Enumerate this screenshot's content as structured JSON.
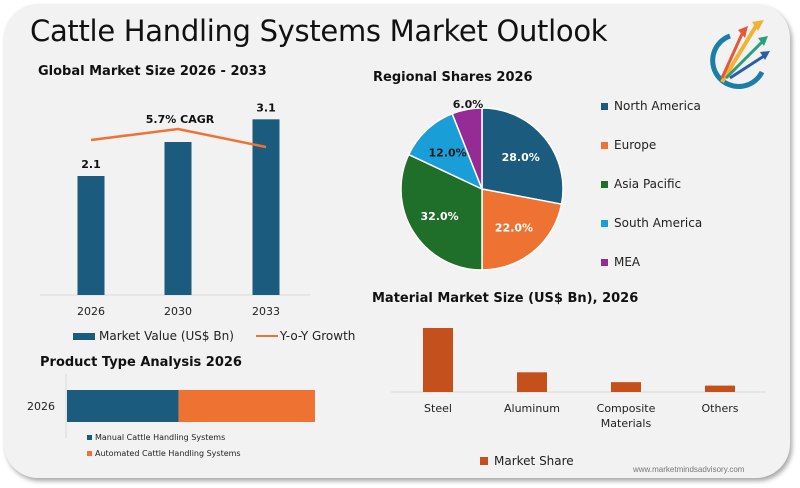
{
  "page": {
    "title": "Cattle Handling Systems Market Outlook",
    "footer_url": "www.marketmindsadvisory.com",
    "logo": "rising-arrows-logo-icon"
  },
  "colors": {
    "navy": "#1a5b7e",
    "orange": "#ee7333",
    "green": "#1f6e2a",
    "sky": "#1a9ed8",
    "purple": "#952b95",
    "rust": "#c4511b"
  },
  "chart_data": [
    {
      "type": "bar",
      "title": "Global Market Size 2026 - 2033",
      "categories": [
        "2026",
        "2030",
        "2033"
      ],
      "series": [
        {
          "name": "Market Value (US$ Bn)",
          "values": [
            2.1,
            2.7,
            3.1
          ],
          "data_labels": [
            "2.1",
            "",
            "3.1"
          ]
        },
        {
          "name": "Y-o-Y Growth",
          "type": "line",
          "values": [
            0.55,
            0.62,
            0.47
          ]
        }
      ],
      "annotation": "5.7% CAGR",
      "xlabel": "",
      "ylabel": "",
      "ylim": [
        0,
        3.5
      ],
      "grid": false,
      "legend": "bottom"
    },
    {
      "type": "pie",
      "title": "Regional Shares 2026",
      "labels": [
        "North America",
        "Europe",
        "Asia Pacific",
        "South America",
        "MEA"
      ],
      "values": [
        28.0,
        22.0,
        32.0,
        12.0,
        6.0
      ],
      "data_labels": [
        "28.0%",
        "22.0%",
        "32.0%",
        "12.0%",
        "6.0%"
      ],
      "legend": "right"
    },
    {
      "type": "bar",
      "orientation": "horizontal-stacked",
      "title": "Product Type Analysis 2026",
      "categories": [
        "2026"
      ],
      "series": [
        {
          "name": "Manual Cattle Handling Systems",
          "values": [
            45
          ]
        },
        {
          "name": "Automated Cattle Handling Systems",
          "values": [
            55
          ]
        }
      ],
      "legend": "bottom"
    },
    {
      "type": "bar",
      "title": "Material Market Size (US$ Bn), 2026",
      "categories": [
        "Steel",
        "Aluminum",
        "Composite Materials",
        "Others"
      ],
      "category_lines": [
        [
          "Steel"
        ],
        [
          "Aluminum"
        ],
        [
          "Composite",
          "Materials"
        ],
        [
          "Others"
        ]
      ],
      "series": [
        {
          "name": "Market Share",
          "values": [
            1.3,
            0.4,
            0.2,
            0.13
          ]
        }
      ],
      "ylim": [
        0,
        1.4
      ],
      "grid": false,
      "legend": "bottom"
    }
  ]
}
